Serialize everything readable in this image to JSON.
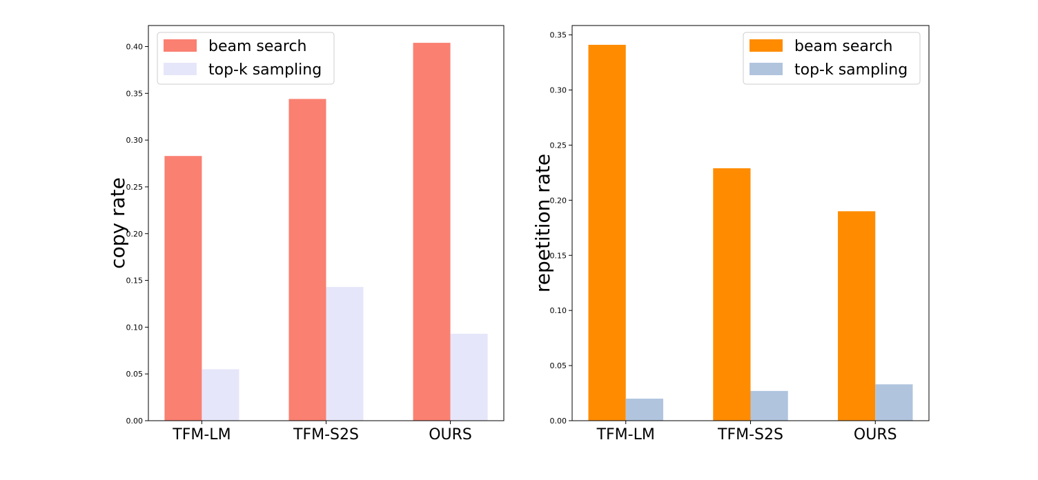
{
  "chart_data": [
    {
      "type": "bar",
      "categories": [
        "TFM-LM",
        "TFM-S2S",
        "OURS"
      ],
      "series": [
        {
          "name": "beam search",
          "values": [
            0.283,
            0.344,
            0.404
          ],
          "color": "#FA8072"
        },
        {
          "name": "top-k sampling",
          "values": [
            0.055,
            0.143,
            0.093
          ],
          "color": "#E6E6FA"
        }
      ],
      "ylabel": "copy rate",
      "ylim": [
        0,
        0.4225
      ],
      "yticks": [
        "0.00",
        "0.05",
        "0.10",
        "0.15",
        "0.20",
        "0.25",
        "0.30",
        "0.35",
        "0.40"
      ],
      "legend": "upper-left",
      "grid": false
    },
    {
      "type": "bar",
      "categories": [
        "TFM-LM",
        "TFM-S2S",
        "OURS"
      ],
      "series": [
        {
          "name": "beam search",
          "values": [
            0.341,
            0.229,
            0.19
          ],
          "color": "#FF8C00"
        },
        {
          "name": "top-k sampling",
          "values": [
            0.02,
            0.027,
            0.033
          ],
          "color": "#B0C4DE"
        }
      ],
      "ylabel": "repetition rate",
      "ylim": [
        0,
        0.3585
      ],
      "yticks": [
        "0.00",
        "0.05",
        "0.10",
        "0.15",
        "0.20",
        "0.25",
        "0.30",
        "0.35"
      ],
      "legend": "upper-right",
      "grid": false
    }
  ]
}
